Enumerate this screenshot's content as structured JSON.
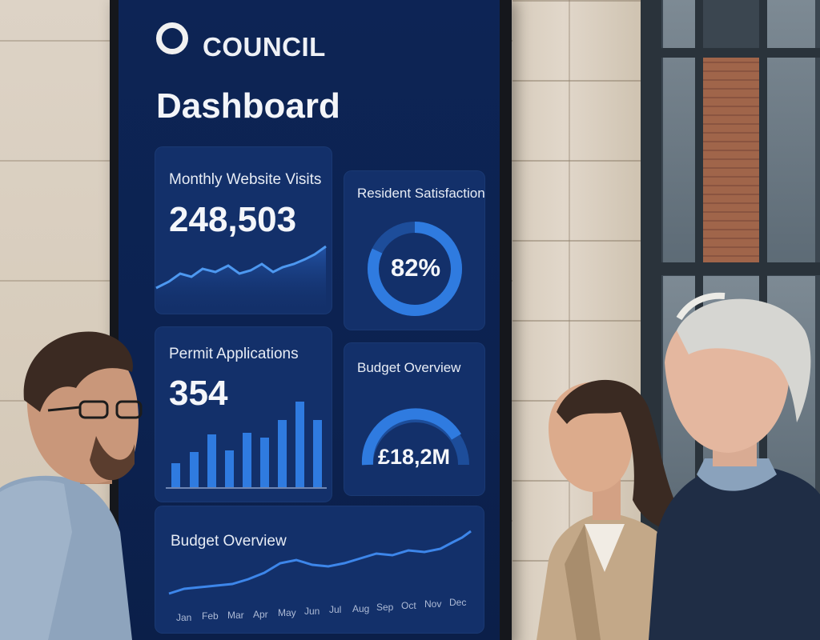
{
  "dashboard": {
    "brand": "COUNCIL",
    "title": "Dashboard",
    "cards": {
      "visits": {
        "title": "Monthly Website Visits",
        "value": "248,503"
      },
      "satisfaction": {
        "title": "Resident Satisfaction",
        "value": "82%",
        "percent": 82
      },
      "permits": {
        "title": "Permit Applications",
        "value": "354"
      },
      "budget_gauge": {
        "title": "Budget Overview",
        "value": "£18,2M"
      },
      "budget_trend": {
        "title": "Budget Overview",
        "months": [
          "Jan",
          "Feb",
          "Mar",
          "Apr",
          "May",
          "Jun",
          "Jul",
          "Aug",
          "Sep",
          "Oct",
          "Nov",
          "Dec"
        ]
      }
    },
    "colors": {
      "screen": "#0c2250",
      "card": "#13306a",
      "accent": "#2f7be0",
      "accent_light": "#4d98f0"
    }
  },
  "scene": {
    "people": [
      "man-with-glasses",
      "woman-in-beige-blazer",
      "older-man-in-navy-sweater"
    ],
    "background": [
      "stone-wall",
      "window-with-brick-building"
    ]
  }
}
